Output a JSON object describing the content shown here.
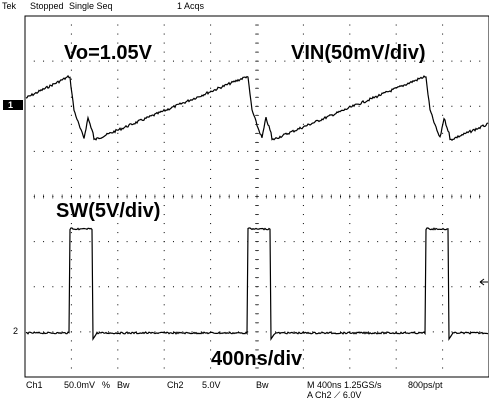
{
  "status": {
    "brand": "Tek",
    "state": "Stopped",
    "mode": "Single Seq",
    "acqs": "1 Acqs"
  },
  "annotations": {
    "vo": "Vo=1.05V",
    "vin": "VIN(50mV/div)",
    "sw": "SW(5V/div)",
    "timebase": "400ns/div"
  },
  "markers": {
    "ch1": "1",
    "ch2": "2"
  },
  "readout": {
    "ch1_label": "Ch1",
    "ch1_scale": "50.0mV",
    "ch1_flag": "%",
    "ch1_bw": "Bw",
    "ch2_label": "Ch2",
    "ch2_scale": "5.0V",
    "ch2_bw": "Bw",
    "horizontal": "M 400ns 1.25GS/s",
    "sample": "800ps/pt",
    "trigger": "A  Ch2  ⟋  6.0V"
  },
  "colors": {
    "trace": "#000000",
    "graticule": "#000000",
    "background": "#ffffff"
  }
}
